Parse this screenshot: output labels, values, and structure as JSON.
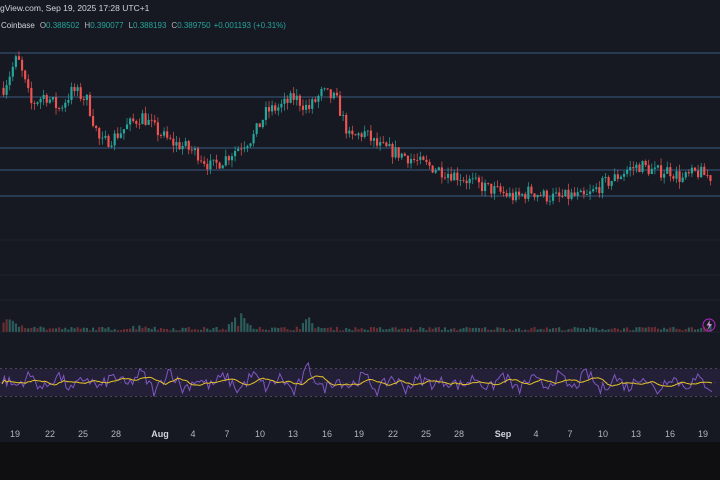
{
  "header": {
    "text": "gView.com, Sep 19, 2025 17:28 UTC+1"
  },
  "ohlc": {
    "exchange": "Coinbase",
    "open_label": "O",
    "open": "0.388502",
    "high_label": "H",
    "high": "0.390077",
    "low_label": "L",
    "low": "0.388193",
    "close_label": "C",
    "close": "0.389750",
    "change": "+0.001193 (+0.31%)"
  },
  "colors": {
    "background": "#161822",
    "up": "#26a69a",
    "down": "#ef5350",
    "rsi_line": "#7e57c2",
    "rsi_ma": "#e6c229",
    "levels": "#5b9bd5"
  },
  "icons": [
    "lightning-icon"
  ],
  "chart_data": {
    "type": "candlestick",
    "x_tick_labels": [
      "19",
      "22",
      "25",
      "28",
      "Aug",
      "4",
      "7",
      "10",
      "13",
      "16",
      "19",
      "22",
      "25",
      "28",
      "Sep",
      "4",
      "7",
      "10",
      "13",
      "16",
      "19"
    ],
    "horizontal_levels": 5,
    "price_path": [
      0.405,
      0.418,
      0.398,
      0.402,
      0.396,
      0.404,
      0.4,
      0.381,
      0.384,
      0.389,
      0.393,
      0.387,
      0.382,
      0.38,
      0.377,
      0.371,
      0.375,
      0.38,
      0.384,
      0.395,
      0.397,
      0.401,
      0.396,
      0.403,
      0.4,
      0.383,
      0.386,
      0.38,
      0.378,
      0.376,
      0.373,
      0.371,
      0.369,
      0.367,
      0.364,
      0.362,
      0.36,
      0.358,
      0.361,
      0.359,
      0.358,
      0.359,
      0.358,
      0.363,
      0.366,
      0.37,
      0.372,
      0.369,
      0.37,
      0.366,
      0.369,
      0.367
    ],
    "volume_path": [
      3,
      2,
      2,
      1,
      1,
      1,
      1,
      1,
      1,
      1,
      2,
      1,
      1,
      1,
      1,
      1,
      1,
      4,
      2,
      1,
      1,
      1,
      3,
      1,
      1,
      1,
      1,
      1,
      1,
      1,
      1,
      1,
      1,
      1,
      1,
      1,
      1,
      1,
      1,
      1,
      1,
      1,
      1,
      1,
      1,
      1,
      1,
      1,
      1,
      1,
      1,
      2
    ],
    "rsi_path": [
      55,
      45,
      60,
      40,
      62,
      38,
      58,
      42,
      60,
      45,
      65,
      35,
      70,
      40,
      55,
      45,
      60,
      38,
      62,
      42,
      58,
      35,
      72,
      40,
      55,
      45,
      60,
      38,
      58,
      42,
      55,
      48,
      52,
      45,
      58,
      40,
      62,
      38,
      56,
      44,
      60,
      40,
      65,
      38,
      58,
      42,
      62,
      36,
      60,
      45,
      55,
      42
    ],
    "rsi_band": [
      30,
      70
    ]
  }
}
